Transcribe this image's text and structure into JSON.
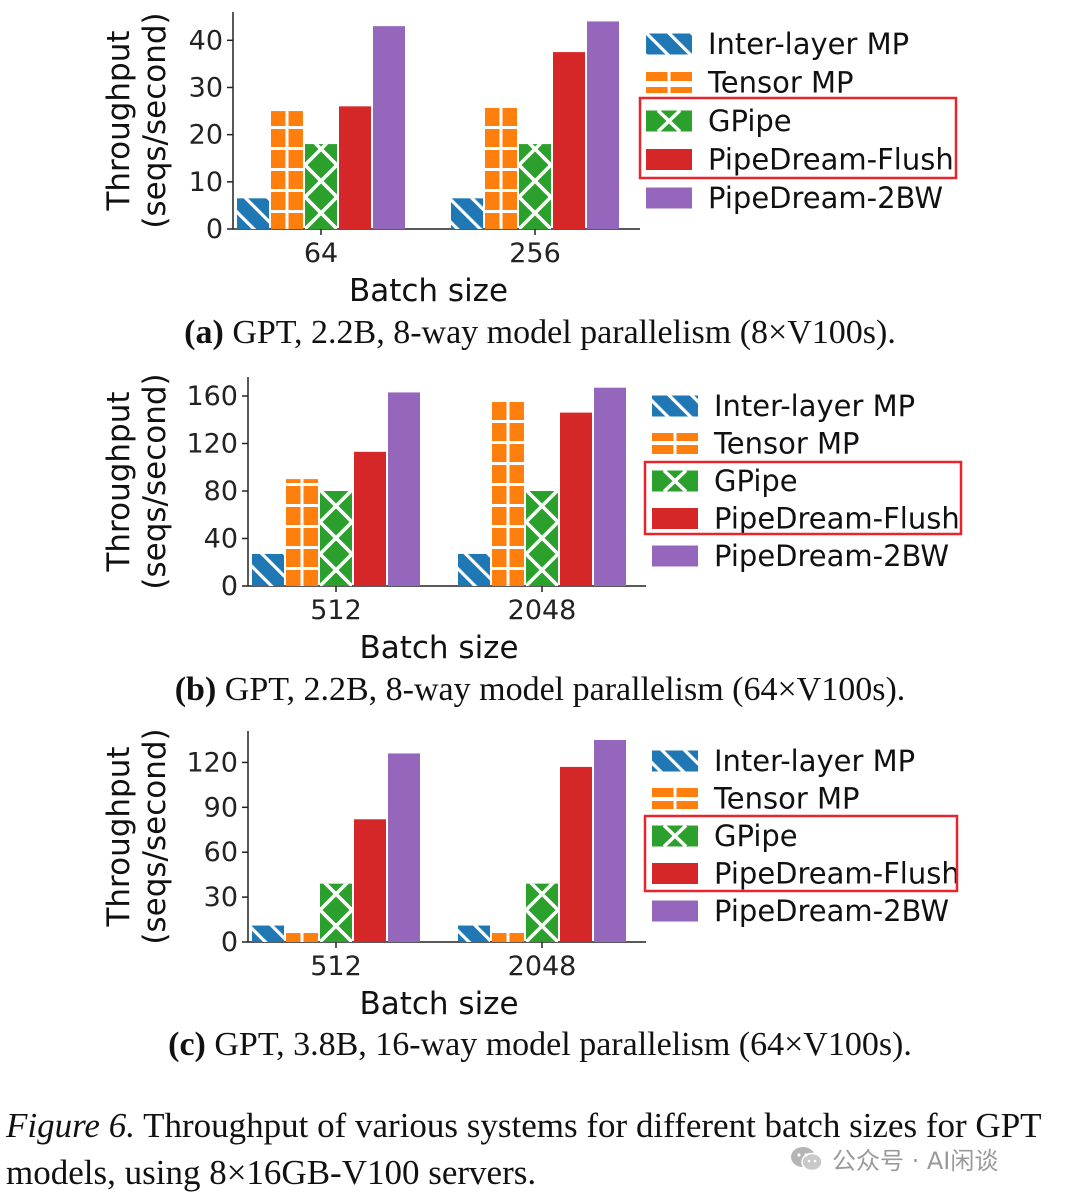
{
  "colors": {
    "Inter-layer MP": "#1f77b4",
    "Tensor MP": "#ff7f0e",
    "GPipe": "#2ca02c",
    "PipeDream-Flush": "#d62728",
    "PipeDream-2BW": "#9467bd",
    "highlight": "#e8242c"
  },
  "legend_highlight": [
    "GPipe",
    "PipeDream-Flush"
  ],
  "chart_data": [
    {
      "type": "bar",
      "xlabel": "Batch size",
      "ylabel": "Throughput\n(seqs/second)",
      "categories": [
        "64",
        "256"
      ],
      "ylim": [
        0,
        46
      ],
      "yticks": [
        0,
        10,
        20,
        30,
        40
      ],
      "series": [
        {
          "name": "Inter-layer MP",
          "values": [
            6.5,
            6.5
          ]
        },
        {
          "name": "Tensor MP",
          "values": [
            25,
            26
          ]
        },
        {
          "name": "GPipe",
          "values": [
            18,
            18
          ]
        },
        {
          "name": "PipeDream-Flush",
          "values": [
            26,
            37.5
          ]
        },
        {
          "name": "PipeDream-2BW",
          "values": [
            43,
            44
          ]
        }
      ],
      "legend": "right",
      "caption_label": "(a)",
      "caption_text": " GPT, 2.2B, 8-way model parallelism (8×V100s)."
    },
    {
      "type": "bar",
      "xlabel": "Batch size",
      "ylabel": "Throughput\n(seqs/second)",
      "categories": [
        "512",
        "2048"
      ],
      "ylim": [
        0,
        176
      ],
      "yticks": [
        0,
        40,
        80,
        120,
        160
      ],
      "series": [
        {
          "name": "Inter-layer MP",
          "values": [
            27,
            27
          ]
        },
        {
          "name": "Tensor MP",
          "values": [
            90,
            156
          ]
        },
        {
          "name": "GPipe",
          "values": [
            80,
            80
          ]
        },
        {
          "name": "PipeDream-Flush",
          "values": [
            113,
            146
          ]
        },
        {
          "name": "PipeDream-2BW",
          "values": [
            163,
            167
          ]
        }
      ],
      "legend": "right",
      "caption_label": "(b)",
      "caption_text": " GPT, 2.2B, 8-way model parallelism (64×V100s)."
    },
    {
      "type": "bar",
      "xlabel": "Batch size",
      "ylabel": "Throughput\n(seqs/second)",
      "categories": [
        "512",
        "2048"
      ],
      "ylim": [
        0,
        141
      ],
      "yticks": [
        0,
        30,
        60,
        90,
        120
      ],
      "series": [
        {
          "name": "Inter-layer MP",
          "values": [
            11,
            11
          ]
        },
        {
          "name": "Tensor MP",
          "values": [
            6,
            6
          ]
        },
        {
          "name": "GPipe",
          "values": [
            39,
            39
          ]
        },
        {
          "name": "PipeDream-Flush",
          "values": [
            82,
            117
          ]
        },
        {
          "name": "PipeDream-2BW",
          "values": [
            126,
            135
          ]
        }
      ],
      "legend": "right",
      "caption_label": "(c)",
      "caption_text": " GPT, 3.8B, 16-way model parallelism (64×V100s)."
    }
  ],
  "figure_caption": {
    "label": "Figure 6.",
    "text": " Throughput of various systems for different batch sizes for GPT models, using 8×16GB-V100 servers."
  },
  "watermark": "公众号 · AI闲谈"
}
